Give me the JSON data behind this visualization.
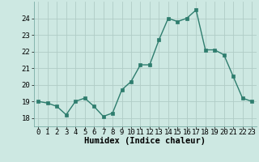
{
  "x": [
    0,
    1,
    2,
    3,
    4,
    5,
    6,
    7,
    8,
    9,
    10,
    11,
    12,
    13,
    14,
    15,
    16,
    17,
    18,
    19,
    20,
    21,
    22,
    23
  ],
  "y": [
    19.0,
    18.9,
    18.7,
    18.2,
    19.0,
    19.2,
    18.7,
    18.1,
    18.3,
    19.7,
    20.2,
    21.2,
    21.2,
    22.7,
    24.0,
    23.8,
    24.0,
    24.5,
    22.1,
    22.1,
    21.8,
    20.5,
    19.2,
    19.0
  ],
  "line_color": "#2e7d6e",
  "marker": "s",
  "marker_size": 2.5,
  "bg_color": "#cde8e2",
  "grid_color": "#b0ccc6",
  "xlabel": "Humidex (Indice chaleur)",
  "ylim": [
    17.5,
    25.0
  ],
  "xlim": [
    -0.5,
    23.5
  ],
  "yticks": [
    18,
    19,
    20,
    21,
    22,
    23,
    24
  ],
  "xticks": [
    0,
    1,
    2,
    3,
    4,
    5,
    6,
    7,
    8,
    9,
    10,
    11,
    12,
    13,
    14,
    15,
    16,
    17,
    18,
    19,
    20,
    21,
    22,
    23
  ],
  "xlabel_fontsize": 7.5,
  "tick_fontsize": 6.5,
  "line_width": 1.0
}
